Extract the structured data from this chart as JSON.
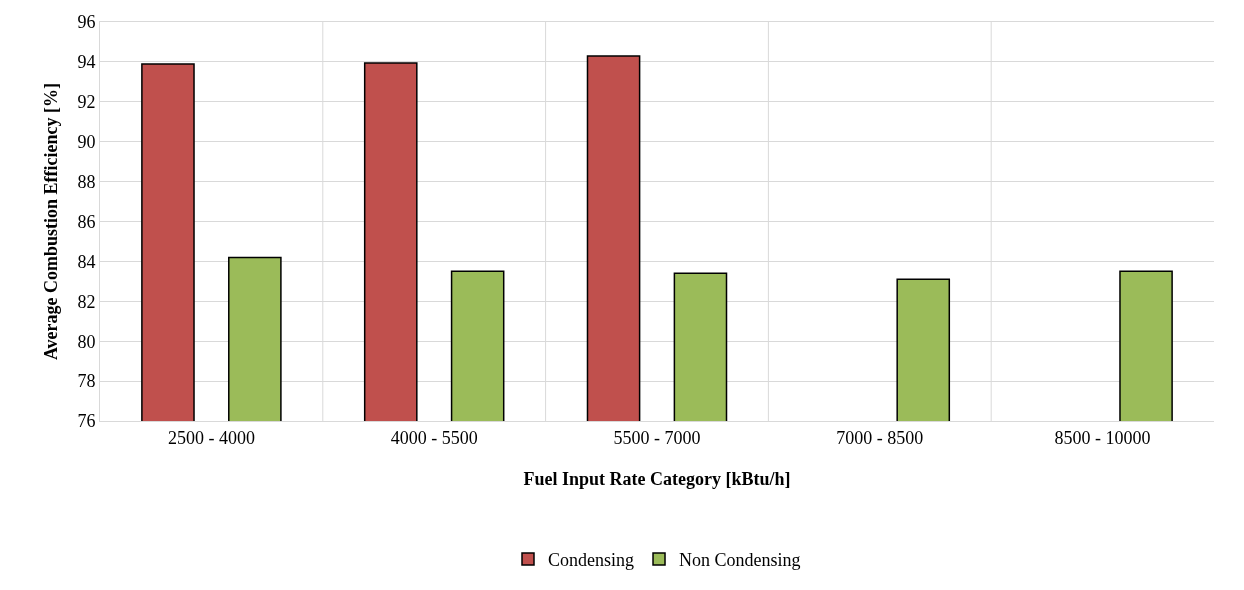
{
  "chart_data": {
    "type": "bar",
    "xlabel": "Fuel Input Rate Category [kBtu/h]",
    "ylabel": "Average Combustion Efficiency [%]",
    "categories": [
      "2500 - 4000",
      "4000 - 5500",
      "5500 - 7000",
      "7000 - 8500",
      "8500 - 10000"
    ],
    "series": [
      {
        "name": "Condensing",
        "color": "#c0504d",
        "values": [
          93.9,
          93.95,
          94.3,
          null,
          null
        ]
      },
      {
        "name": "Non Condensing",
        "color": "#9bbb59",
        "values": [
          84.2,
          83.5,
          83.4,
          83.1,
          83.5
        ]
      }
    ],
    "ylim": [
      76,
      96
    ],
    "yticks": [
      76,
      78,
      80,
      82,
      84,
      86,
      88,
      90,
      92,
      94,
      96
    ],
    "grid": true,
    "legend": "bottom"
  }
}
